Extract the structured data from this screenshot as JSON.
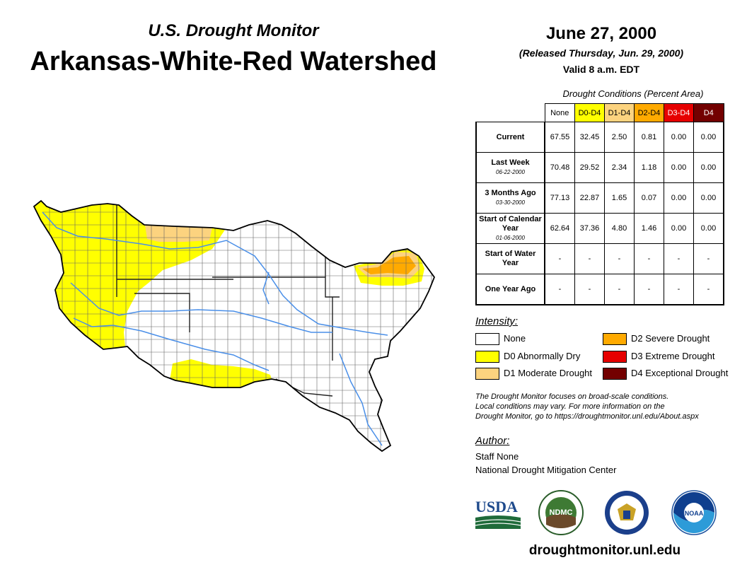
{
  "header": {
    "subtitle": "U.S. Drought Monitor",
    "title": "Arkansas-White-Red Watershed",
    "date": "June 27, 2000",
    "released": "(Released Thursday, Jun. 29, 2000)",
    "valid": "Valid 8 a.m. EDT"
  },
  "table": {
    "caption": "Drought Conditions (Percent Area)",
    "columns": [
      "None",
      "D0-D4",
      "D1-D4",
      "D2-D4",
      "D3-D4",
      "D4"
    ],
    "rows": [
      {
        "label": "Current",
        "sub": "",
        "values": [
          "67.55",
          "32.45",
          "2.50",
          "0.81",
          "0.00",
          "0.00"
        ]
      },
      {
        "label": "Last Week",
        "sub": "06-22-2000",
        "values": [
          "70.48",
          "29.52",
          "2.34",
          "1.18",
          "0.00",
          "0.00"
        ]
      },
      {
        "label": "3 Months Ago",
        "sub": "03-30-2000",
        "values": [
          "77.13",
          "22.87",
          "1.65",
          "0.07",
          "0.00",
          "0.00"
        ]
      },
      {
        "label": "Start of Calendar Year",
        "sub": "01-06-2000",
        "values": [
          "62.64",
          "37.36",
          "4.80",
          "1.46",
          "0.00",
          "0.00"
        ]
      },
      {
        "label": "Start of Water Year",
        "sub": "",
        "values": [
          "-",
          "-",
          "-",
          "-",
          "-",
          "-"
        ]
      },
      {
        "label": "One Year Ago",
        "sub": "",
        "values": [
          "-",
          "-",
          "-",
          "-",
          "-",
          "-"
        ]
      }
    ]
  },
  "legend": {
    "title": "Intensity:",
    "items": [
      {
        "label": "None",
        "color": "#ffffff"
      },
      {
        "label": "D0 Abnormally Dry",
        "color": "#ffff00"
      },
      {
        "label": "D1 Moderate Drought",
        "color": "#fcd37f"
      },
      {
        "label": "D2 Severe Drought",
        "color": "#ffaa00"
      },
      {
        "label": "D3 Extreme Drought",
        "color": "#e60000"
      },
      {
        "label": "D4 Exceptional Drought",
        "color": "#730000"
      }
    ]
  },
  "note": {
    "line1": "The Drought Monitor focuses on broad-scale conditions.",
    "line2": "Local conditions may vary. For more information on the",
    "line3": "Drought Monitor, go to https://droughtmonitor.unl.edu/About.aspx"
  },
  "author": {
    "title": "Author:",
    "name": "Staff None",
    "org": "National Drought Mitigation Center"
  },
  "logos": {
    "usda": "USDA",
    "ndmc": "NDMC",
    "noaa": "NOAA"
  },
  "website": "droughtmonitor.unl.edu",
  "colors": {
    "none": "#ffffff",
    "d0": "#ffff00",
    "d1": "#fcd37f",
    "d2": "#ffaa00",
    "d3": "#e60000",
    "d4": "#730000",
    "river": "#4a8fe8"
  }
}
